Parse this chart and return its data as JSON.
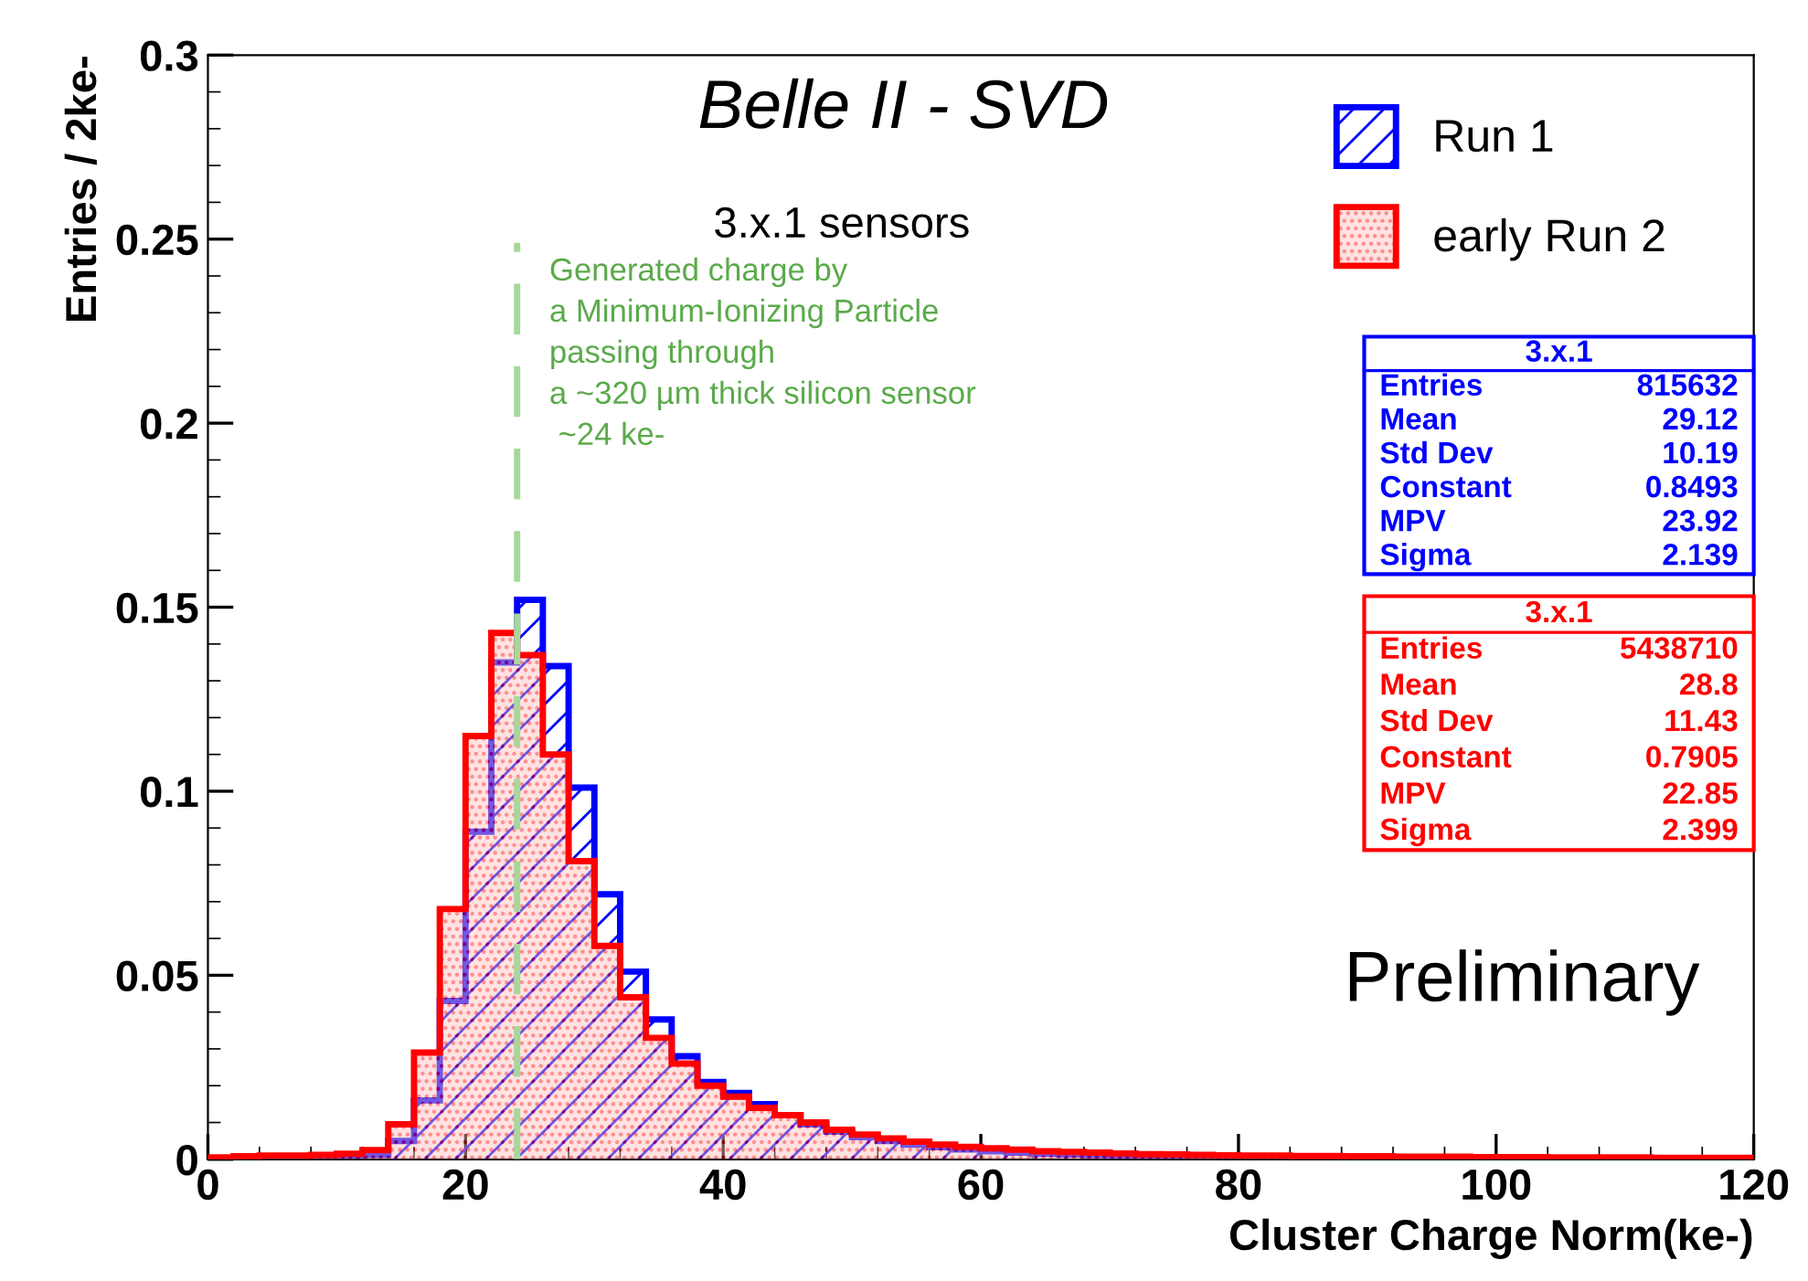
{
  "chart_data": {
    "type": "histogram",
    "title": "Belle II - SVD",
    "subtitle": "3.x.1 sensors",
    "xlabel": "Cluster Charge Norm(ke-)",
    "ylabel": "Entries / 2ke-",
    "bins": [
      0,
      2,
      4,
      6,
      8,
      10,
      12,
      14,
      16,
      18,
      20,
      22,
      24,
      26,
      28,
      30,
      32,
      34,
      36,
      38,
      40,
      42,
      44,
      46,
      48,
      50,
      52,
      54,
      56,
      58,
      60,
      62,
      64,
      66,
      68,
      70,
      72,
      74,
      76,
      78,
      80,
      82,
      84,
      86,
      88,
      90,
      92,
      94,
      96,
      98,
      100,
      102,
      104,
      106,
      108,
      110,
      112,
      114,
      116,
      118,
      120
    ],
    "series": [
      {
        "name": "Run 1",
        "color": "#0000ff",
        "values": [
          0.0001,
          0.0001,
          0.0002,
          0.0002,
          0.0003,
          0.0005,
          0.0012,
          0.005,
          0.016,
          0.043,
          0.089,
          0.135,
          0.152,
          0.134,
          0.101,
          0.072,
          0.051,
          0.038,
          0.028,
          0.021,
          0.018,
          0.015,
          0.012,
          0.0095,
          0.0075,
          0.006,
          0.005,
          0.004,
          0.0033,
          0.0027,
          0.0022,
          0.0018,
          0.0015,
          0.0013,
          0.0011,
          0.001,
          0.0009,
          0.0008,
          0.0007,
          0.0006,
          0.0006,
          0.0005,
          0.0005,
          0.0005,
          0.0004,
          0.0004,
          0.0004,
          0.0003,
          0.0003,
          0.0003,
          0.0003,
          0.0003,
          0.0003,
          0.0002,
          0.0002,
          0.0002,
          0.0002,
          0.0002,
          0.0002,
          0.0002
        ]
      },
      {
        "name": "early Run 2",
        "color": "#ff0000",
        "values": [
          0.0005,
          0.0008,
          0.001,
          0.001,
          0.0012,
          0.0015,
          0.0025,
          0.0095,
          0.029,
          0.068,
          0.115,
          0.143,
          0.137,
          0.11,
          0.081,
          0.058,
          0.044,
          0.033,
          0.026,
          0.02,
          0.017,
          0.014,
          0.012,
          0.01,
          0.008,
          0.0067,
          0.0057,
          0.0048,
          0.004,
          0.0034,
          0.003,
          0.0026,
          0.0022,
          0.002,
          0.0018,
          0.0016,
          0.0014,
          0.0013,
          0.0012,
          0.0011,
          0.001,
          0.001,
          0.0009,
          0.0009,
          0.0008,
          0.0008,
          0.0007,
          0.0007,
          0.0007,
          0.0006,
          0.0006,
          0.0006,
          0.0005,
          0.0005,
          0.0005,
          0.0005,
          0.0004,
          0.0004,
          0.0004,
          0.0004
        ]
      }
    ],
    "xlim": [
      0,
      120
    ],
    "xticks": [
      0,
      20,
      40,
      60,
      80,
      100,
      120
    ],
    "ylim": [
      0,
      0.3
    ],
    "yticks": [
      0,
      0.05,
      0.1,
      0.15,
      0.2,
      0.25,
      0.3
    ],
    "ref_lines": [
      {
        "axis": "x",
        "value": 24,
        "color": "#a6d89a",
        "line_style": "dashed",
        "label": "Generated charge by\na Minimum-Ionizing Particle\npassing through\na ~320 µm thick silicon sensor\n ~24 ke-"
      }
    ],
    "annotations": [
      "Preliminary",
      "3.x.1\nEntries 815632\nMean 29.12\nStd Dev 10.19\nConstant 0.8493\nMPV 23.92\nSigma 2.139",
      "3.x.1\nEntries 5438710\nMean 28.8\nStd Dev 11.43\nConstant 0.7905\nMPV 22.85\nSigma 2.399"
    ],
    "legend": "top right",
    "grid": false
  }
}
